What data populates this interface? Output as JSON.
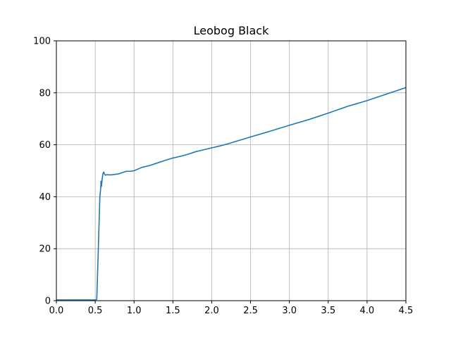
{
  "colors": {
    "background": "#ffffff",
    "line": "#1f77b4",
    "grid": "#b0b0b0",
    "axes": "#000000"
  },
  "chart_data": {
    "type": "line",
    "title": "Leobog Black",
    "xlabel": "",
    "ylabel": "",
    "xlim": [
      0.0,
      4.5
    ],
    "ylim": [
      0,
      100
    ],
    "grid": true,
    "xticks": [
      0.0,
      0.5,
      1.0,
      1.5,
      2.0,
      2.5,
      3.0,
      3.5,
      4.0,
      4.5
    ],
    "xtick_labels": [
      "0.0",
      "0.5",
      "1.0",
      "1.5",
      "2.0",
      "2.5",
      "3.0",
      "3.5",
      "4.0",
      "4.5"
    ],
    "yticks": [
      0,
      20,
      40,
      60,
      80,
      100
    ],
    "ytick_labels": [
      "0",
      "20",
      "40",
      "60",
      "80",
      "100"
    ],
    "series": [
      {
        "x": [
          0.0,
          0.1,
          0.2,
          0.3,
          0.4,
          0.5,
          0.52,
          0.54,
          0.55,
          0.56,
          0.57,
          0.575,
          0.58,
          0.59,
          0.6,
          0.61,
          0.62,
          0.63,
          0.65,
          0.7,
          0.75,
          0.8,
          0.85,
          0.9,
          0.95,
          1.0,
          1.1,
          1.2,
          1.3,
          1.4,
          1.5,
          1.6,
          1.7,
          1.8,
          1.9,
          2.0,
          2.1,
          2.2,
          2.3,
          2.4,
          2.5,
          2.75,
          3.0,
          3.25,
          3.5,
          3.75,
          4.0,
          4.25,
          4.5
        ],
        "y": [
          0.3,
          0.3,
          0.3,
          0.3,
          0.3,
          0.3,
          0.5,
          20,
          30,
          40,
          43,
          46,
          44,
          47,
          49,
          49.5,
          48.7,
          48.3,
          48.5,
          48.4,
          48.6,
          48.8,
          49.3,
          49.8,
          49.8,
          50.0,
          51.3,
          52.0,
          53.0,
          54.0,
          54.9,
          55.6,
          56.4,
          57.4,
          58.1,
          58.8,
          59.5,
          60.3,
          61.2,
          62.1,
          63.0,
          65.2,
          67.5,
          69.7,
          72.2,
          74.8,
          77.0,
          79.5,
          82.0
        ]
      }
    ]
  }
}
